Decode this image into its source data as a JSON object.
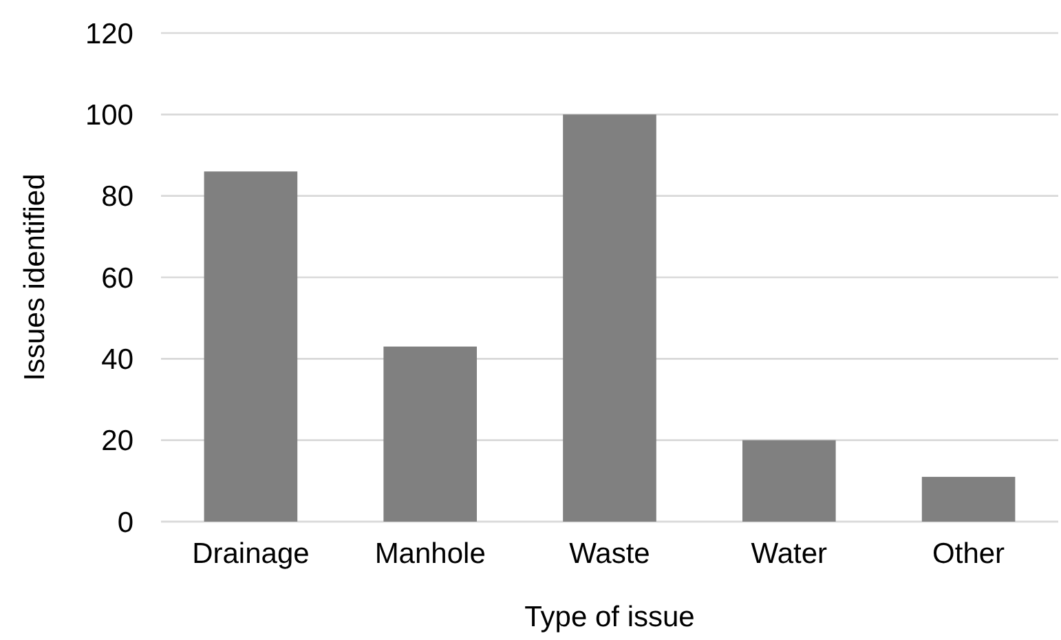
{
  "chart_data": {
    "type": "bar",
    "xlabel": "Type of issue",
    "ylabel": "Issues identified",
    "categories": [
      "Drainage",
      "Manhole",
      "Waste",
      "Water",
      "Other"
    ],
    "values": [
      86,
      43,
      100,
      20,
      11
    ],
    "color": "#808080",
    "ylim": [
      0,
      120
    ],
    "yticks": [
      0,
      20,
      40,
      60,
      80,
      100,
      120
    ],
    "grid": "y"
  }
}
